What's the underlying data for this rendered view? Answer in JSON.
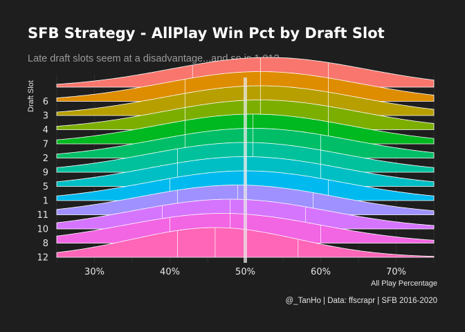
{
  "title": "SFB Strategy - AllPlay Win Pct by Draft Slot",
  "subtitle": "Late draft slots seem at a disadvantage...and so is 1.01?",
  "caption": "@_TanHo | Data: ffscrapr | SFB 2016-2020",
  "colors": {
    "background": "#1e1e1e",
    "grid": "#3a3a3a",
    "reference_line": "#e8e8e8",
    "quantile_line": "#ffffff"
  },
  "chart_data": {
    "type": "ridgeline",
    "xlabel": "All Play Percentage",
    "ylabel": "Draft Slot",
    "xlim": [
      0.25,
      0.75
    ],
    "x_ticks": [
      0.3,
      0.4,
      0.5,
      0.6,
      0.7
    ],
    "x_tick_labels": [
      "30%",
      "40%",
      "50%",
      "60%",
      "70%"
    ],
    "reference_line": 0.5,
    "grid": true,
    "series": [
      {
        "name": "12",
        "color": "#ff66b7",
        "quantiles": [
          0.41,
          0.46,
          0.57
        ],
        "center": 0.46,
        "spread": 0.11
      },
      {
        "name": "8",
        "color": "#f265e3",
        "quantiles": [
          0.4,
          0.48,
          0.6
        ],
        "center": 0.47,
        "spread": 0.13
      },
      {
        "name": "10",
        "color": "#d575fe",
        "quantiles": [
          0.39,
          0.48,
          0.58
        ],
        "center": 0.48,
        "spread": 0.13
      },
      {
        "name": "11",
        "color": "#9f91ff",
        "quantiles": [
          0.41,
          0.49,
          0.59
        ],
        "center": 0.49,
        "spread": 0.13
      },
      {
        "name": "1",
        "color": "#00b9ef",
        "quantiles": [
          0.4,
          0.5,
          0.61
        ],
        "center": 0.5,
        "spread": 0.13
      },
      {
        "name": "5",
        "color": "#00bfc4",
        "quantiles": [
          0.41,
          0.5,
          0.6
        ],
        "center": 0.5,
        "spread": 0.13
      },
      {
        "name": "9",
        "color": "#00c19c",
        "quantiles": [
          0.41,
          0.51,
          0.6
        ],
        "center": 0.5,
        "spread": 0.13
      },
      {
        "name": "2",
        "color": "#00be67",
        "quantiles": [
          0.42,
          0.51,
          0.6
        ],
        "center": 0.51,
        "spread": 0.13
      },
      {
        "name": "7",
        "color": "#00b81f",
        "quantiles": [
          0.42,
          0.51,
          0.61
        ],
        "center": 0.51,
        "spread": 0.13
      },
      {
        "name": "4",
        "color": "#7cae00",
        "quantiles": [
          0.42,
          0.52,
          0.61
        ],
        "center": 0.52,
        "spread": 0.13
      },
      {
        "name": "3",
        "color": "#b79f00",
        "quantiles": [
          0.42,
          0.52,
          0.61
        ],
        "center": 0.52,
        "spread": 0.13
      },
      {
        "name": "6",
        "color": "#de8c00",
        "quantiles": [
          0.42,
          0.52,
          0.61
        ],
        "center": 0.52,
        "spread": 0.13
      },
      {
        "name": "",
        "color": "#f8766d",
        "quantiles": [
          0.43,
          0.52,
          0.61
        ],
        "center": 0.53,
        "spread": 0.13
      }
    ]
  }
}
